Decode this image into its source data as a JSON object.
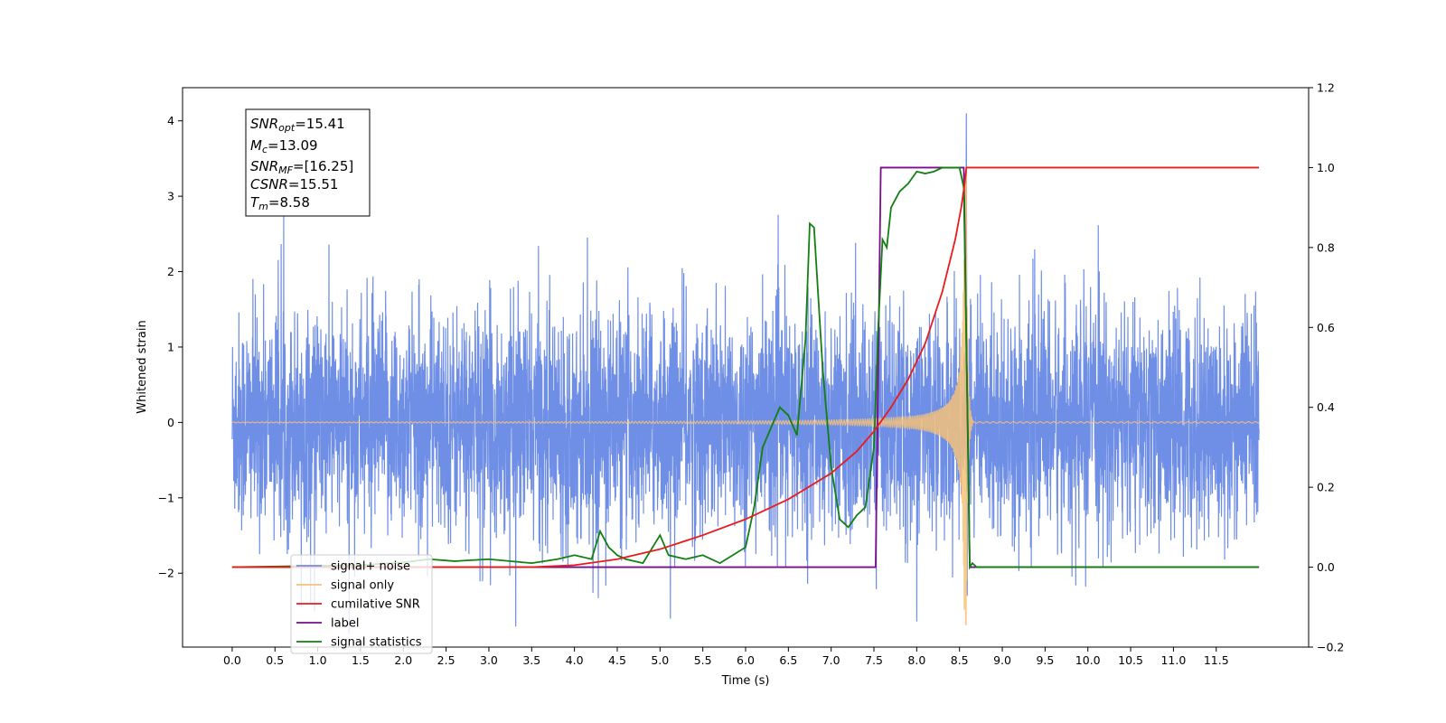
{
  "chart_data": {
    "type": "line",
    "xlabel": "Time (s)",
    "ylabel": "Whitened strain",
    "xlim": [
      -0.58,
      12.58
    ],
    "ylim": [
      -2.98,
      4.44
    ],
    "y2lim": [
      -0.2,
      1.2
    ],
    "xticks": [
      "0.0",
      "0.5",
      "1.0",
      "1.5",
      "2.0",
      "2.5",
      "3.0",
      "3.5",
      "4.0",
      "4.5",
      "5.0",
      "5.5",
      "6.0",
      "6.5",
      "7.0",
      "7.5",
      "8.0",
      "8.5",
      "9.0",
      "9.5",
      "10.0",
      "10.5",
      "11.0",
      "11.5"
    ],
    "yticks": [
      "−2",
      "−1",
      "0",
      "1",
      "2",
      "3",
      "4"
    ],
    "y2ticks": [
      "−0.2",
      "0.0",
      "0.2",
      "0.4",
      "0.6",
      "0.8",
      "1.0",
      "1.2"
    ],
    "grid": false,
    "legend_position": "lower-left",
    "annotation": {
      "lines": [
        {
          "sym": "SNR",
          "sub": "opt",
          "val": "=15.41"
        },
        {
          "sym": "M",
          "sub": "c",
          "val": "=13.09"
        },
        {
          "sym": "SNR",
          "sub": "MF",
          "val": "=[16.25]"
        },
        {
          "sym": "CSNR",
          "sub": "",
          "val": "=15.51"
        },
        {
          "sym": "T",
          "sub": "m",
          "val": "=8.58"
        }
      ]
    },
    "series": [
      {
        "name": "signal+ noise",
        "color": "#6f8ee6",
        "axis": "left",
        "noise_amplitude": 1.0,
        "x_range": [
          0.0,
          12.0
        ]
      },
      {
        "name": "signal only",
        "color": "#f5c27a",
        "axis": "left",
        "merger_time": 8.58,
        "peak_amplitude": 3.3
      },
      {
        "name": "cumilative SNR",
        "color": "#e81c1c",
        "axis": "right",
        "x": [
          3.5,
          4.0,
          4.5,
          5.0,
          5.5,
          6.0,
          6.5,
          7.0,
          7.3,
          7.5,
          7.7,
          7.9,
          8.1,
          8.3,
          8.45,
          8.52,
          8.56,
          8.58,
          8.6,
          12.0
        ],
        "y": [
          0.0,
          0.005,
          0.02,
          0.045,
          0.08,
          0.12,
          0.17,
          0.235,
          0.29,
          0.34,
          0.4,
          0.47,
          0.56,
          0.69,
          0.82,
          0.9,
          0.96,
          1.0,
          1.0,
          1.0
        ]
      },
      {
        "name": "label",
        "color": "#7a0d8c",
        "axis": "right",
        "x": [
          0.0,
          7.52,
          7.58,
          8.55,
          8.62,
          12.0
        ],
        "y": [
          0.0,
          0.0,
          1.0,
          1.0,
          0.0,
          0.0
        ]
      },
      {
        "name": "signal statistics",
        "color": "#118011",
        "axis": "right",
        "x": [
          0.0,
          1.5,
          2.0,
          2.3,
          2.6,
          3.0,
          3.5,
          3.8,
          4.0,
          4.2,
          4.3,
          4.4,
          4.5,
          4.6,
          4.8,
          5.0,
          5.1,
          5.3,
          5.5,
          5.7,
          6.0,
          6.1,
          6.2,
          6.3,
          6.4,
          6.5,
          6.6,
          6.7,
          6.75,
          6.8,
          6.9,
          7.0,
          7.1,
          7.2,
          7.3,
          7.4,
          7.5,
          7.55,
          7.6,
          7.65,
          7.7,
          7.8,
          7.9,
          8.0,
          8.1,
          8.2,
          8.3,
          8.4,
          8.5,
          8.55,
          8.6,
          8.62,
          8.65,
          8.7,
          12.0
        ],
        "y": [
          0.0,
          0.005,
          0.012,
          0.02,
          0.015,
          0.02,
          0.01,
          0.02,
          0.03,
          0.02,
          0.09,
          0.05,
          0.03,
          0.02,
          0.01,
          0.08,
          0.03,
          0.02,
          0.03,
          0.01,
          0.05,
          0.15,
          0.3,
          0.35,
          0.4,
          0.38,
          0.33,
          0.57,
          0.86,
          0.85,
          0.5,
          0.25,
          0.12,
          0.1,
          0.13,
          0.15,
          0.3,
          0.6,
          0.82,
          0.8,
          0.9,
          0.94,
          0.96,
          0.99,
          0.985,
          0.99,
          1.0,
          1.0,
          1.0,
          0.95,
          0.3,
          0.0,
          0.01,
          0.0,
          0.0
        ]
      }
    ]
  }
}
